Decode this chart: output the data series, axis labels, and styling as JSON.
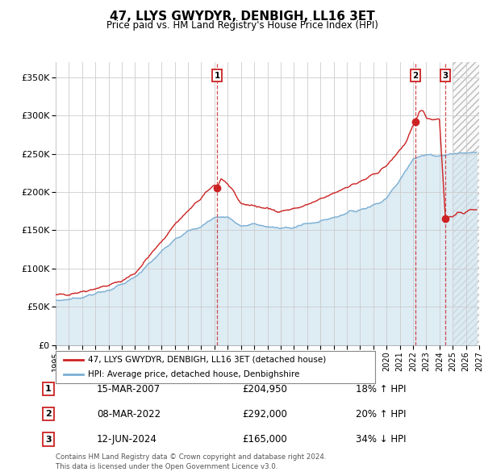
{
  "title": "47, LLYS GWYDYR, DENBIGH, LL16 3ET",
  "subtitle": "Price paid vs. HM Land Registry's House Price Index (HPI)",
  "ylabel_ticks": [
    "£0",
    "£50K",
    "£100K",
    "£150K",
    "£200K",
    "£250K",
    "£300K",
    "£350K"
  ],
  "ytick_vals": [
    0,
    50000,
    100000,
    150000,
    200000,
    250000,
    300000,
    350000
  ],
  "ylim": [
    0,
    370000
  ],
  "xlim_start": 1995.0,
  "xlim_end": 2027.0,
  "hpi_color": "#7bafd4",
  "hpi_fill_color": "#d0e4f0",
  "price_color": "#cc2222",
  "sale1_x": 2007.2,
  "sale1_y": 204950,
  "sale1_label": "1",
  "sale1_date": "15-MAR-2007",
  "sale1_price": "£204,950",
  "sale1_hpi": "18% ↑ HPI",
  "sale2_x": 2022.18,
  "sale2_y": 292000,
  "sale2_label": "2",
  "sale2_date": "08-MAR-2022",
  "sale2_price": "£292,000",
  "sale2_hpi": "20% ↑ HPI",
  "sale3_x": 2024.45,
  "sale3_y": 165000,
  "sale3_label": "3",
  "sale3_date": "12-JUN-2024",
  "sale3_price": "£165,000",
  "sale3_hpi": "34% ↓ HPI",
  "legend_line1": "47, LLYS GWYDYR, DENBIGH, LL16 3ET (detached house)",
  "legend_line2": "HPI: Average price, detached house, Denbighshire",
  "footnote1": "Contains HM Land Registry data © Crown copyright and database right 2024.",
  "footnote2": "This data is licensed under the Open Government Licence v3.0.",
  "background_color": "#ffffff",
  "grid_color": "#cccccc",
  "hatch_start": 2025.0,
  "xlabel_years": [
    1995,
    1996,
    1997,
    1998,
    1999,
    2000,
    2001,
    2002,
    2003,
    2004,
    2005,
    2006,
    2007,
    2008,
    2009,
    2010,
    2011,
    2012,
    2013,
    2014,
    2015,
    2016,
    2017,
    2018,
    2019,
    2020,
    2021,
    2022,
    2023,
    2024,
    2025,
    2026,
    2027
  ]
}
